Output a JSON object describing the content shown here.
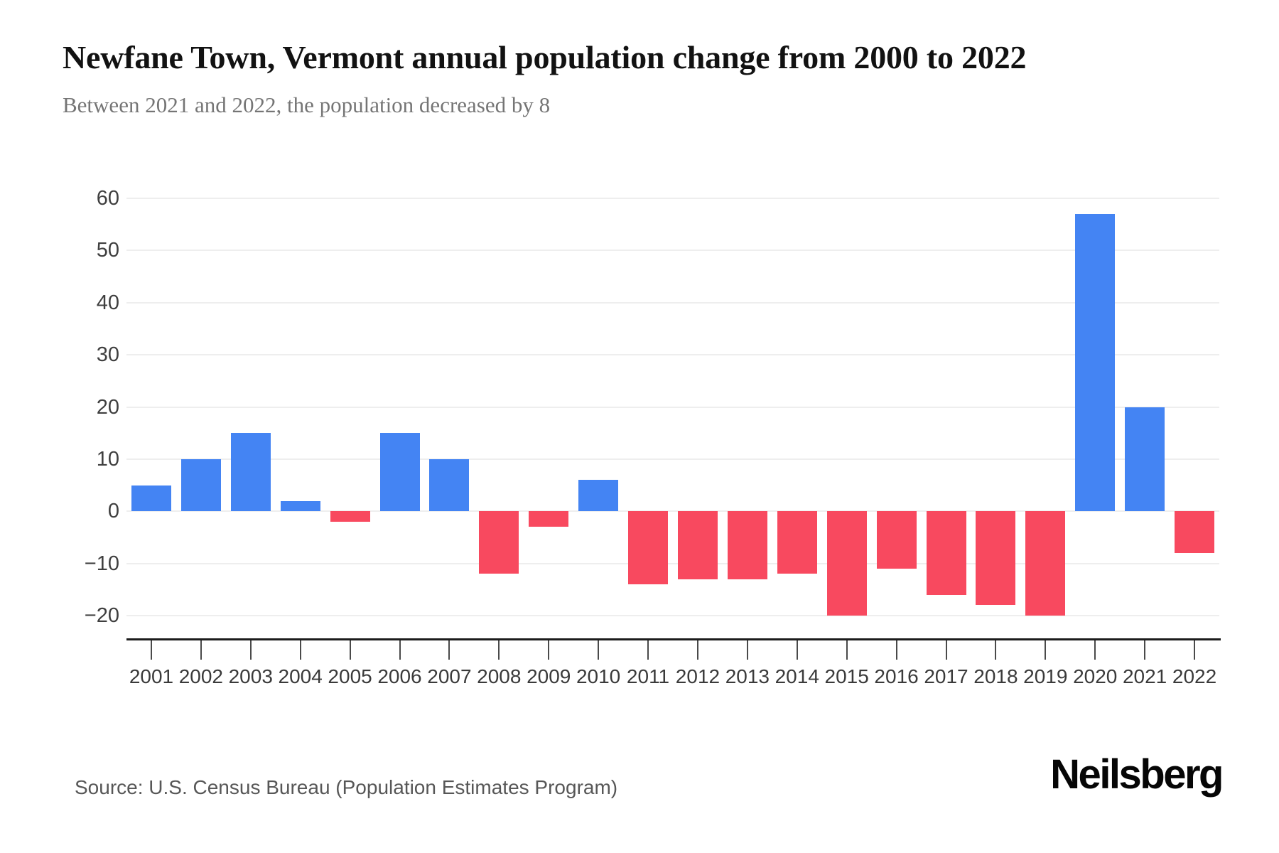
{
  "header": {
    "title": "Newfane Town, Vermont annual population change from 2000 to 2022",
    "subtitle": "Between 2021 and 2022, the population decreased by 8"
  },
  "footer": {
    "source": "Source: U.S. Census Bureau (Population Estimates Program)",
    "brand": "Neilsberg"
  },
  "chart_data": {
    "type": "bar",
    "title": "Newfane Town, Vermont annual population change from 2000 to 2022",
    "xlabel": "",
    "ylabel": "",
    "categories": [
      "2001",
      "2002",
      "2003",
      "2004",
      "2005",
      "2006",
      "2007",
      "2008",
      "2009",
      "2010",
      "2011",
      "2012",
      "2013",
      "2014",
      "2015",
      "2016",
      "2017",
      "2018",
      "2019",
      "2020",
      "2021",
      "2022"
    ],
    "values": [
      5,
      10,
      15,
      2,
      -2,
      15,
      10,
      -12,
      -3,
      6,
      -14,
      -13,
      -13,
      -12,
      -20,
      -11,
      -16,
      -18,
      -20,
      57,
      20,
      -8
    ],
    "ylim": [
      -20,
      60
    ],
    "ytick_step": 10,
    "grid": true,
    "legend": "none",
    "colors": {
      "positive": "#4484F3",
      "negative": "#F8495F",
      "gridline": "#EEEEEE",
      "axis": "#1C1C1C"
    }
  }
}
